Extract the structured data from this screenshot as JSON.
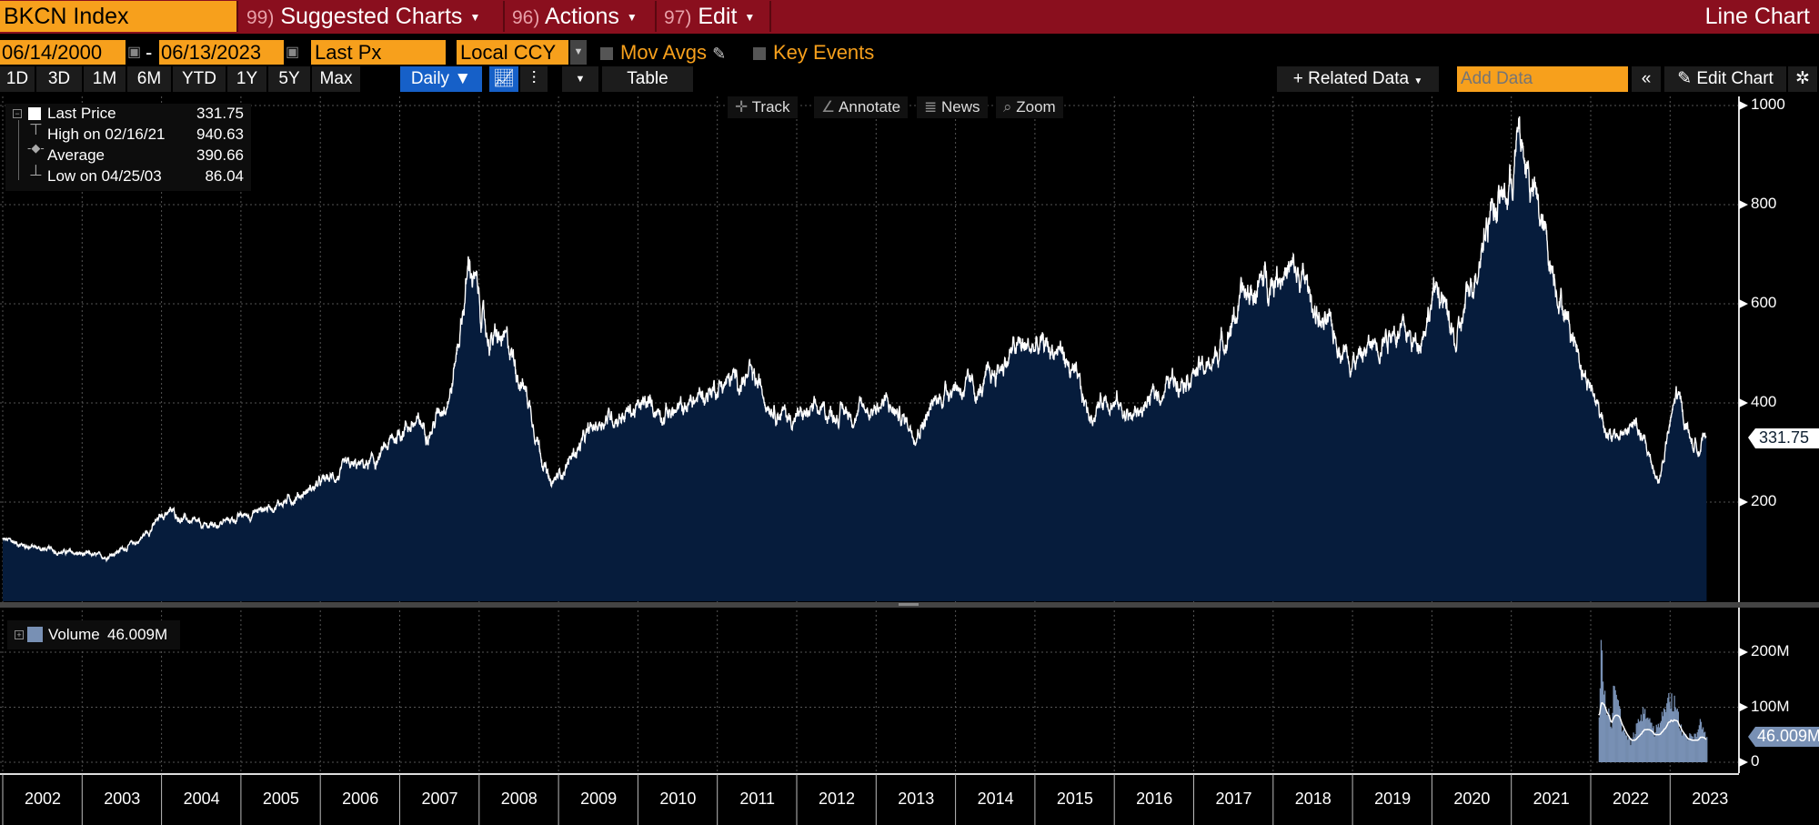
{
  "header": {
    "ticker": "BKCN Index",
    "suggested_num": "99)",
    "suggested": "Suggested Charts",
    "actions_num": "96)",
    "actions": "Actions",
    "edit_num": "97)",
    "edit": "Edit",
    "title": "Line Chart"
  },
  "controls": {
    "start_date": "06/14/2000",
    "dash": "-",
    "end_date": "06/13/2023",
    "field": "Last Px",
    "currency": "Local CCY",
    "mov_avgs": "Mov Avgs",
    "key_events": "Key Events"
  },
  "periods": [
    "1D",
    "3D",
    "1M",
    "6M",
    "YTD",
    "1Y",
    "5Y",
    "Max"
  ],
  "toolbar": {
    "frequency": "Daily ▼",
    "table": "Table",
    "related": "+ Related Data",
    "add_data_placeholder": "Add Data",
    "collapse": "«",
    "edit_chart": "Edit Chart"
  },
  "chart_tools": [
    "Track",
    "Annotate",
    "News",
    "Zoom"
  ],
  "legend": {
    "last_label": "Last Price",
    "last_value": "331.75",
    "high_label": "High on 02/16/21",
    "high_value": "940.63",
    "avg_label": "Average",
    "avg_value": "390.66",
    "low_label": "Low on 04/25/03",
    "low_value": "86.04"
  },
  "volume_legend": {
    "label": "Volume",
    "value": "46.009M"
  },
  "colors": {
    "header": "#8a0f1e",
    "accent": "#f7a01c",
    "fill": "#061c3c",
    "volume": "#7890b4",
    "active": "#1660c8"
  },
  "chart_data": {
    "type": "area",
    "series_price": {
      "name": "Last Price",
      "points": [
        [
          2002.0,
          124
        ],
        [
          2002.5,
          105
        ],
        [
          2003.28,
          89
        ],
        [
          2003.7,
          120
        ],
        [
          2004.08,
          183
        ],
        [
          2004.52,
          148
        ],
        [
          2005.0,
          170
        ],
        [
          2005.62,
          206
        ],
        [
          2006.35,
          265
        ],
        [
          2006.7,
          280
        ],
        [
          2007.08,
          358
        ],
        [
          2007.4,
          350
        ],
        [
          2007.66,
          440
        ],
        [
          2007.88,
          686
        ],
        [
          2008.1,
          534
        ],
        [
          2008.39,
          510
        ],
        [
          2008.6,
          420
        ],
        [
          2008.9,
          229
        ],
        [
          2009.2,
          300
        ],
        [
          2009.56,
          370
        ],
        [
          2010.15,
          393
        ],
        [
          2010.5,
          380
        ],
        [
          2011.03,
          440
        ],
        [
          2011.4,
          450
        ],
        [
          2011.9,
          370
        ],
        [
          2012.3,
          380
        ],
        [
          2012.78,
          382
        ],
        [
          2013.1,
          400
        ],
        [
          2013.5,
          347
        ],
        [
          2013.95,
          440
        ],
        [
          2014.3,
          420
        ],
        [
          2014.75,
          510
        ],
        [
          2015.33,
          510
        ],
        [
          2015.7,
          370
        ],
        [
          2015.9,
          420
        ],
        [
          2016.21,
          370
        ],
        [
          2016.87,
          464
        ],
        [
          2017.2,
          470
        ],
        [
          2017.6,
          604
        ],
        [
          2018.11,
          675
        ],
        [
          2018.4,
          640
        ],
        [
          2018.62,
          557
        ],
        [
          2019.06,
          487
        ],
        [
          2019.5,
          557
        ],
        [
          2019.8,
          520
        ],
        [
          2020.08,
          639
        ],
        [
          2020.3,
          510
        ],
        [
          2020.74,
          803
        ],
        [
          2020.95,
          820
        ],
        [
          2021.1,
          937
        ],
        [
          2021.4,
          745
        ],
        [
          2021.69,
          581
        ],
        [
          2021.98,
          440
        ],
        [
          2022.27,
          323
        ],
        [
          2022.57,
          358
        ],
        [
          2022.86,
          241
        ],
        [
          2023.08,
          417
        ],
        [
          2023.3,
          311
        ],
        [
          2023.46,
          331.75
        ]
      ]
    },
    "series_volume": {
      "name": "Volume",
      "unit": "M",
      "points": [
        [
          2022.1,
          90
        ],
        [
          2022.13,
          250
        ],
        [
          2022.16,
          140
        ],
        [
          2022.25,
          70
        ],
        [
          2022.3,
          175
        ],
        [
          2022.4,
          60
        ],
        [
          2022.5,
          40
        ],
        [
          2022.65,
          100
        ],
        [
          2022.8,
          60
        ],
        [
          2022.95,
          120
        ],
        [
          2023.05,
          120
        ],
        [
          2023.15,
          55
        ],
        [
          2023.3,
          50
        ],
        [
          2023.38,
          88
        ],
        [
          2023.46,
          46.009
        ]
      ]
    },
    "y_ticks": [
      "1000",
      "800",
      "600",
      "400",
      "200"
    ],
    "volume_ticks": [
      "200M",
      "100M",
      "0"
    ],
    "ylim": [
      0,
      1000
    ],
    "volume_ylim": [
      0,
      270
    ],
    "x_labels": [
      "2002",
      "2003",
      "2004",
      "2005",
      "2006",
      "2007",
      "2008",
      "2009",
      "2010",
      "2011",
      "2012",
      "2013",
      "2014",
      "2015",
      "2016",
      "2017",
      "2018",
      "2019",
      "2020",
      "2021",
      "2022",
      "2023"
    ],
    "last_tag": "331.75",
    "volume_tag": "46.009M",
    "grid": true
  }
}
